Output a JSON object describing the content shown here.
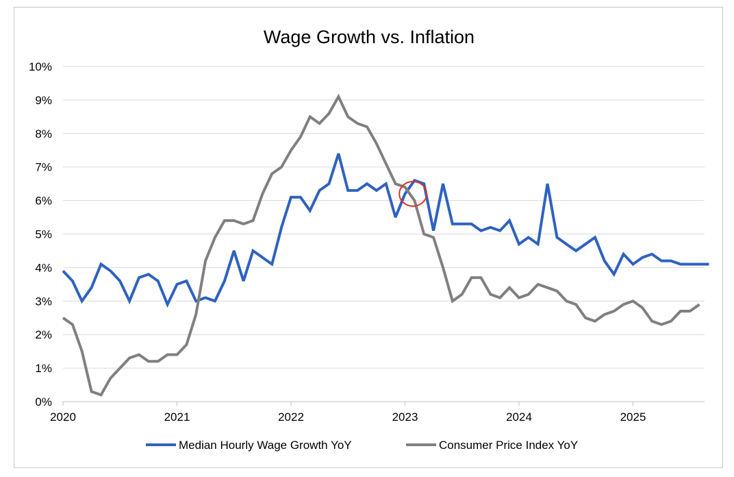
{
  "chart_data": {
    "type": "line",
    "title": "Wage Growth vs. Inflation",
    "xlabel": "",
    "ylabel": "",
    "x_start": 2020.0,
    "x_step_years": 0.08333,
    "xlim": [
      2020,
      2025.67
    ],
    "ylim": [
      0,
      10
    ],
    "y_ticks": [
      "0%",
      "1%",
      "2%",
      "3%",
      "4%",
      "5%",
      "6%",
      "7%",
      "8%",
      "9%",
      "10%"
    ],
    "x_ticks": [
      "2020",
      "2021",
      "2022",
      "2023",
      "2024",
      "2025"
    ],
    "grid": "horizontal",
    "legend_position": "bottom",
    "series": [
      {
        "name": "Median Hourly Wage Growth YoY",
        "color": "#2e62c0",
        "values": [
          3.9,
          3.6,
          3.0,
          3.4,
          4.1,
          3.9,
          3.6,
          3.0,
          3.7,
          3.8,
          3.6,
          2.9,
          3.5,
          3.6,
          3.0,
          3.1,
          3.0,
          3.6,
          4.5,
          3.6,
          4.5,
          4.3,
          4.1,
          5.2,
          6.1,
          6.1,
          5.7,
          6.3,
          6.5,
          7.4,
          6.3,
          6.3,
          6.5,
          6.3,
          6.5,
          5.5,
          6.2,
          6.6,
          6.5,
          5.1,
          6.5,
          5.3,
          5.3,
          5.3,
          5.1,
          5.2,
          5.1,
          5.4,
          4.7,
          4.9,
          4.7,
          6.5,
          4.9,
          4.7,
          4.5,
          4.7,
          4.9,
          4.2,
          3.8,
          4.4,
          4.1,
          4.3,
          4.4,
          4.2,
          4.2,
          4.1,
          4.1,
          4.1,
          4.1
        ]
      },
      {
        "name": "Consumer Price Index YoY",
        "color": "#808080",
        "values": [
          2.5,
          2.3,
          1.5,
          0.3,
          0.2,
          0.7,
          1.0,
          1.3,
          1.4,
          1.2,
          1.2,
          1.4,
          1.4,
          1.7,
          2.6,
          4.2,
          4.9,
          5.4,
          5.4,
          5.3,
          5.4,
          6.2,
          6.8,
          7.0,
          7.5,
          7.9,
          8.5,
          8.3,
          8.6,
          9.1,
          8.5,
          8.3,
          8.2,
          7.7,
          7.1,
          6.5,
          6.4,
          6.0,
          5.0,
          4.9,
          4.0,
          3.0,
          3.2,
          3.7,
          3.7,
          3.2,
          3.1,
          3.4,
          3.1,
          3.2,
          3.5,
          3.4,
          3.3,
          3.0,
          2.9,
          2.5,
          2.4,
          2.6,
          2.7,
          2.9,
          3.0,
          2.8,
          2.4,
          2.3,
          2.4,
          2.7,
          2.7,
          2.9
        ]
      }
    ],
    "annotations": [
      {
        "type": "circle",
        "color": "#e03020",
        "x": 2023.07,
        "y": 6.2,
        "note": "crossover"
      }
    ]
  }
}
